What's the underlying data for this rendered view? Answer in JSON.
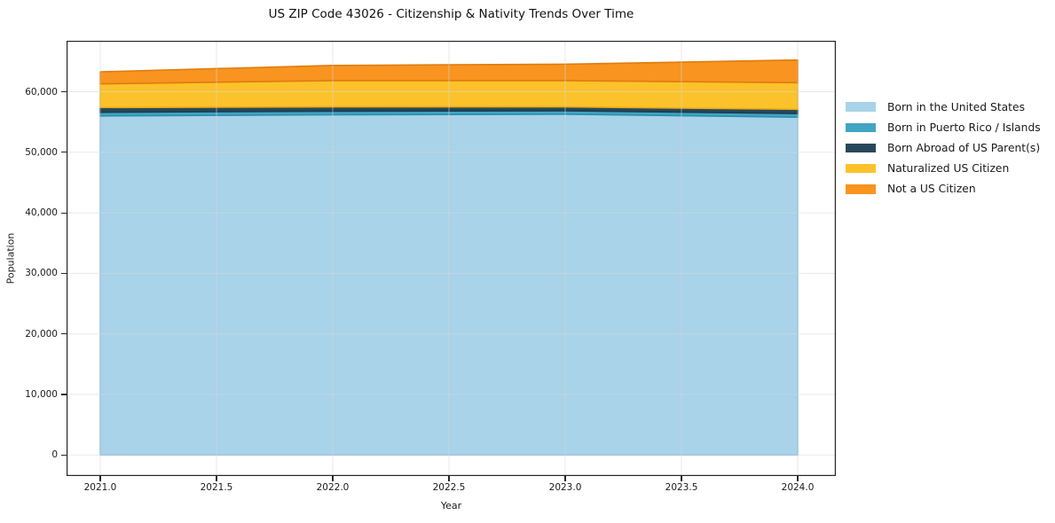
{
  "figure": {
    "background": "#ffffff",
    "spine_color": "#262626",
    "grid_color": "#d9d9d9",
    "text_color": "#1a1a1a"
  },
  "chart_data": {
    "type": "area",
    "stacked": true,
    "title": "US ZIP Code 43026 - Citizenship & Nativity Trends Over Time",
    "xlabel": "Year",
    "ylabel": "Population",
    "x": [
      2021,
      2022,
      2023,
      2024
    ],
    "series": [
      {
        "name": "Born in the United States",
        "color": "#a8d3e8",
        "edge": "#86bfda",
        "values": [
          56000,
          56200,
          56300,
          55800
        ]
      },
      {
        "name": "Born in Puerto Rico / Islands",
        "color": "#41a5c3",
        "edge": "#2b8fae",
        "values": [
          600,
          600,
          550,
          600
        ]
      },
      {
        "name": "Born Abroad of US Parent(s)",
        "color": "#27485c",
        "edge": "#1c3c4e",
        "values": [
          800,
          700,
          650,
          700
        ]
      },
      {
        "name": "Naturalized US Citizen",
        "color": "#fcc22b",
        "edge": "#edaa11",
        "values": [
          3900,
          4350,
          4350,
          4400
        ]
      },
      {
        "name": "Not a US Citizen",
        "color": "#f8941f",
        "edge": "#e07c0d",
        "values": [
          2000,
          2500,
          2700,
          3750
        ]
      }
    ],
    "totals": [
      63300,
      64350,
      64550,
      65250
    ],
    "xlim": [
      2020.855,
      2024.164
    ],
    "ylim": [
      -3470,
      68420
    ],
    "x_ticks": [
      {
        "v": 2021.0,
        "label": "2021.0"
      },
      {
        "v": 2021.5,
        "label": "2021.5"
      },
      {
        "v": 2022.0,
        "label": "2022.0"
      },
      {
        "v": 2022.5,
        "label": "2022.5"
      },
      {
        "v": 2023.0,
        "label": "2023.0"
      },
      {
        "v": 2023.5,
        "label": "2023.5"
      },
      {
        "v": 2024.0,
        "label": "2024.0"
      }
    ],
    "y_ticks": [
      {
        "v": 0,
        "label": "0"
      },
      {
        "v": 10000,
        "label": "10,000"
      },
      {
        "v": 20000,
        "label": "20,000"
      },
      {
        "v": 30000,
        "label": "30,000"
      },
      {
        "v": 40000,
        "label": "40,000"
      },
      {
        "v": 50000,
        "label": "50,000"
      },
      {
        "v": 60000,
        "label": "60,000"
      }
    ],
    "grid": true,
    "legend_position": "right-outside"
  }
}
